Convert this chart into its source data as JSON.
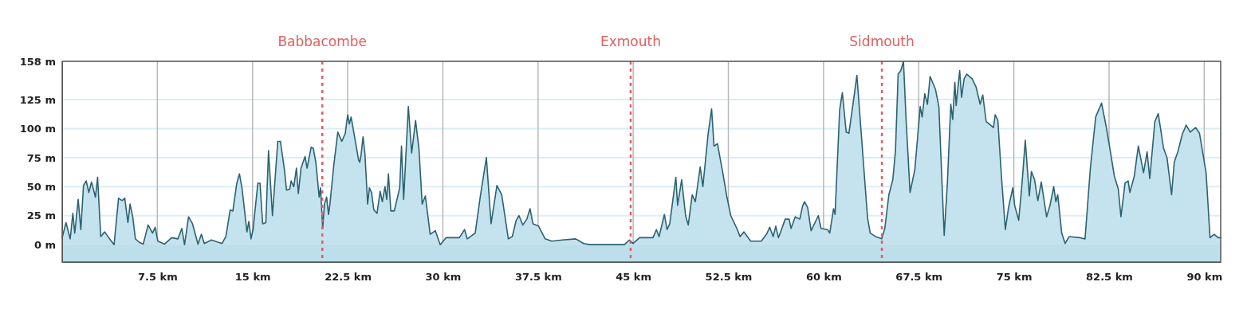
{
  "chart_data": {
    "type": "area",
    "x": [
      0,
      0.3,
      0.63,
      0.84,
      0.99,
      1.26,
      1.47,
      1.68,
      1.89,
      2.1,
      2.31,
      2.62,
      2.79,
      3.04,
      3.35,
      3.67,
      4.09,
      4.44,
      4.72,
      4.93,
      5.18,
      5.35,
      5.56,
      5.77,
      6.08,
      6.39,
      6.77,
      7.12,
      7.33,
      7.54,
      8.07,
      8.63,
      9.12,
      9.43,
      9.64,
      9.96,
      10.27,
      10.7,
      10.97,
      11.2,
      11.76,
      12.6,
      12.9,
      13.24,
      13.45,
      13.76,
      13.97,
      14.18,
      14.56,
      14.71,
      14.88,
      15.04,
      15.42,
      15.59,
      15.8,
      16.05,
      16.26,
      16.57,
      16.99,
      17.2,
      17.52,
      17.68,
      17.94,
      18.04,
      18.25,
      18.46,
      18.61,
      18.82,
      19.14,
      19.3,
      19.62,
      19.79,
      20.0,
      20.25,
      20.36,
      20.53,
      20.67,
      20.84,
      20.99,
      21.09,
      21.41,
      21.72,
      22.04,
      22.31,
      22.5,
      22.63,
      22.77,
      23.36,
      23.45,
      23.55,
      23.71,
      23.86,
      24.07,
      24.21,
      24.38,
      24.56,
      24.81,
      25.06,
      25.23,
      25.44,
      25.58,
      25.71,
      25.9,
      26.17,
      26.6,
      26.74,
      26.91,
      27.28,
      27.54,
      27.85,
      28.12,
      28.37,
      28.62,
      29.0,
      29.41,
      29.79,
      30.25,
      31.3,
      31.71,
      31.92,
      32.55,
      32.97,
      33.43,
      33.8,
      34.26,
      34.64,
      35.16,
      35.47,
      35.78,
      36.0,
      36.3,
      36.62,
      36.87,
      37.1,
      37.54,
      38.06,
      38.59,
      39.42,
      40.47,
      41.1,
      41.6,
      44.3,
      44.71,
      45.0,
      45.5,
      46.56,
      46.83,
      47.04,
      47.46,
      47.67,
      47.88,
      48.36,
      48.5,
      48.82,
      49.13,
      49.34,
      49.65,
      49.9,
      50.28,
      50.49,
      50.91,
      51.18,
      51.37,
      51.64,
      52.06,
      52.37,
      52.69,
      53.21,
      53.42,
      53.73,
      54.26,
      55.09,
      55.51,
      55.76,
      56.03,
      56.24,
      56.45,
      56.98,
      57.29,
      57.44,
      57.77,
      58.13,
      58.34,
      58.5,
      58.75,
      59.02,
      59.59,
      59.8,
      60.32,
      60.49,
      60.79,
      60.91,
      61.27,
      61.48,
      61.79,
      62.0,
      62.32,
      62.63,
      63.47,
      63.68,
      64.1,
      64.58,
      64.83,
      65.15,
      65.46,
      65.67,
      65.88,
      66.09,
      66.3,
      66.51,
      66.82,
      67.2,
      67.62,
      67.77,
      67.98,
      68.19,
      68.4,
      68.82,
      69.09,
      69.51,
      69.76,
      70.03,
      70.18,
      70.35,
      70.45,
      70.73,
      70.88,
      71.08,
      71.29,
      71.71,
      72.02,
      72.34,
      72.55,
      72.82,
      73.39,
      73.53,
      73.74,
      74.02,
      74.33,
      74.58,
      74.92,
      75.06,
      75.38,
      75.63,
      75.9,
      76.22,
      76.38,
      76.63,
      76.89,
      77.16,
      77.58,
      77.85,
      78.14,
      78.31,
      78.46,
      78.77,
      79.04,
      79.36,
      80.2,
      80.61,
      81.03,
      81.45,
      81.91,
      82.29,
      82.61,
      82.92,
      83.23,
      83.44,
      83.76,
      84.01,
      84.14,
      84.49,
      84.81,
      85.22,
      85.5,
      85.71,
      86.11,
      86.38,
      86.8,
      87.07,
      87.43,
      87.64,
      87.95,
      88.27,
      88.58,
      88.9,
      89.32,
      89.63,
      90.15,
      90.46,
      90.78,
      91.1,
      91.3
    ],
    "values": [
      6,
      19,
      5,
      27,
      10,
      39,
      13,
      51,
      55,
      45,
      54,
      41,
      58,
      7,
      11,
      6,
      0,
      40,
      38,
      40,
      19,
      35,
      24,
      5,
      2,
      0.5,
      17,
      10,
      15,
      3,
      0.5,
      6,
      5,
      14,
      0,
      24,
      18,
      0.5,
      9,
      1,
      4,
      1,
      7,
      30,
      29,
      53,
      61,
      48,
      11,
      20,
      5,
      13,
      53,
      53,
      18,
      19,
      81,
      25,
      89,
      89,
      64,
      47,
      48,
      55,
      50,
      66,
      44,
      66,
      76,
      66,
      84,
      83,
      70,
      41,
      49,
      14,
      35,
      41,
      26,
      34,
      69,
      97,
      89,
      96,
      112,
      104,
      110,
      73,
      71,
      77,
      93,
      78,
      35,
      49,
      45,
      30,
      27,
      46,
      37,
      50,
      39,
      61,
      29,
      29,
      49,
      85,
      39,
      119,
      79,
      107,
      82,
      35,
      42,
      9,
      12,
      0,
      6,
      6,
      13,
      5,
      10,
      43,
      75,
      18,
      51,
      43,
      5,
      7,
      21,
      25,
      17,
      22,
      31,
      18,
      16,
      5,
      3,
      4,
      5,
      1,
      0,
      0,
      4,
      1,
      6,
      6,
      13,
      7,
      26,
      13,
      18,
      58,
      34,
      56,
      25,
      17,
      43,
      37,
      67,
      50,
      96,
      117,
      85,
      87,
      62,
      42,
      25,
      13,
      7,
      11,
      3,
      3,
      9,
      15,
      7,
      16,
      6,
      22,
      22,
      14,
      24,
      22,
      33,
      37,
      32,
      12,
      25,
      14,
      13,
      10,
      31,
      26,
      116,
      131,
      97,
      96,
      121,
      146,
      23,
      10,
      7,
      5,
      14,
      43,
      56,
      81,
      147,
      150,
      158,
      107,
      45,
      65,
      119,
      110,
      130,
      121,
      145,
      134,
      119,
      8,
      53,
      121,
      108,
      140,
      120,
      150,
      127,
      143,
      147,
      143,
      136,
      121,
      129,
      106,
      101,
      112,
      107,
      59,
      13,
      32,
      49,
      34,
      21,
      51,
      90,
      42,
      63,
      56,
      38,
      54,
      24,
      34,
      50,
      37,
      43,
      10,
      1,
      7,
      6,
      5,
      66,
      110,
      122,
      101,
      80,
      59,
      48,
      24,
      53,
      55,
      45,
      59,
      85,
      62,
      80,
      57,
      106,
      113,
      83,
      75,
      43,
      71,
      81,
      95,
      103,
      97,
      101,
      96,
      62,
      6,
      9,
      6,
      6
    ],
    "color": "#2b6270",
    "xlim": [
      0,
      91.3
    ],
    "ylim": [
      -15,
      158
    ],
    "xticks": [
      {
        "value": 7.5,
        "label": "7.5 km"
      },
      {
        "value": 15,
        "label": "15 km"
      },
      {
        "value": 22.5,
        "label": "22.5 km"
      },
      {
        "value": 30,
        "label": "30 km"
      },
      {
        "value": 37.5,
        "label": "37.5 km"
      },
      {
        "value": 45,
        "label": "45 km"
      },
      {
        "value": 52.5,
        "label": "52.5 km"
      },
      {
        "value": 60,
        "label": "60 km"
      },
      {
        "value": 67.5,
        "label": "67.5 km"
      },
      {
        "value": 75,
        "label": "75 km"
      },
      {
        "value": 82.5,
        "label": "82.5 km"
      },
      {
        "value": 90,
        "label": "90 km"
      }
    ],
    "yticks": [
      {
        "value": 0,
        "label": "0 m"
      },
      {
        "value": 25,
        "label": "25 m"
      },
      {
        "value": 50,
        "label": "50 m"
      },
      {
        "value": 75,
        "label": "75 m"
      },
      {
        "value": 100,
        "label": "100 m"
      },
      {
        "value": 125,
        "label": "125 m"
      },
      {
        "value": 158,
        "label": "158 m"
      }
    ],
    "grid": true,
    "ref_lines": [
      {
        "axis": "x",
        "value": 20.5,
        "label": "Babbacombe",
        "color": "#e06060",
        "line_style": "dashed"
      },
      {
        "axis": "x",
        "value": 44.8,
        "label": "Exmouth",
        "color": "#e06060",
        "line_style": "dashed"
      },
      {
        "axis": "x",
        "value": 64.6,
        "label": "Sidmouth",
        "color": "#e06060",
        "line_style": "dashed"
      }
    ]
  }
}
